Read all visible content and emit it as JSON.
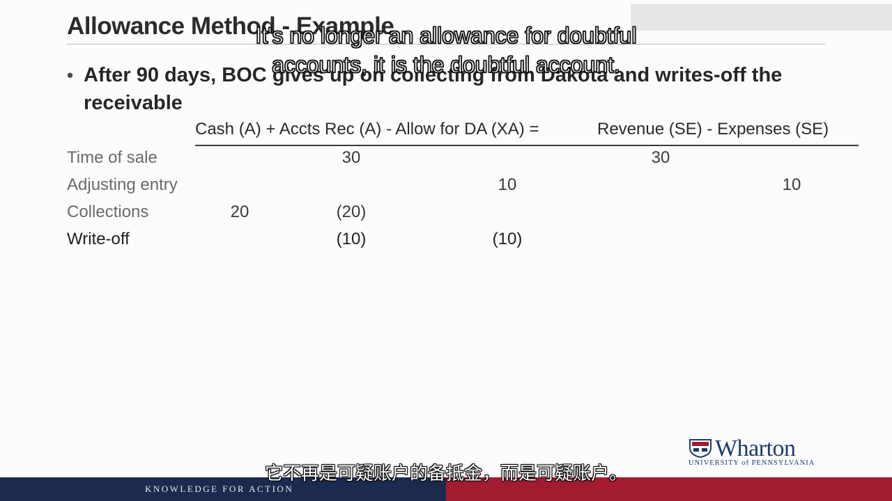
{
  "slide": {
    "title": "Allowance Method - Example",
    "bullet": "After 90 days, BOC gives up on collecting from Dakota and writes-off the receivable"
  },
  "table": {
    "header_left": "Cash (A) + Accts Rec (A) - Allow for DA (XA) =",
    "header_right": "Revenue (SE) - Expenses (SE)",
    "rows": [
      {
        "label": "Time of sale",
        "cash": "",
        "ar": "30",
        "allow": "",
        "revenue": "30",
        "expenses": ""
      },
      {
        "label": "Adjusting entry",
        "cash": "",
        "ar": "",
        "allow": "10",
        "revenue": "",
        "expenses": "10"
      },
      {
        "label": "Collections",
        "cash": "20",
        "ar": "(20)",
        "allow": "",
        "revenue": "",
        "expenses": ""
      },
      {
        "label": "Write-off",
        "cash": "",
        "ar": "(10)",
        "allow": "(10)",
        "revenue": "",
        "expenses": ""
      }
    ]
  },
  "captions": {
    "english_line1": "It's no longer an allowance for doubtful",
    "english_line2": "accounts, it is the doubtful account.",
    "chinese": "它不再是可疑账户的备抵金，而是可疑账户。"
  },
  "logo": {
    "wordmark": "Wharton",
    "subtitle": "UNIVERSITY of PENNSYLVANIA"
  },
  "footer": {
    "tagline": "KNOWLEDGE FOR ACTION"
  },
  "colors": {
    "footer_navy": "#1b2a4e",
    "footer_red": "#a31b2f",
    "logo_blue": "#1d3a6e"
  }
}
